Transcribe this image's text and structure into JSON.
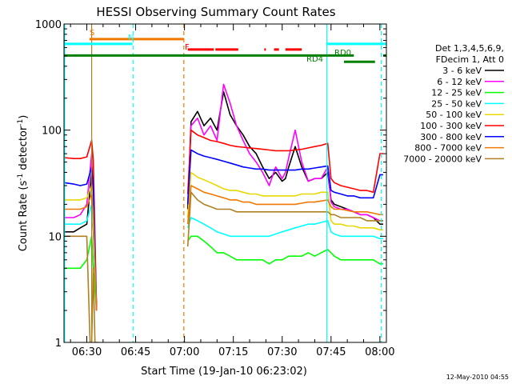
{
  "chart_data": {
    "type": "line",
    "title": "HESSI Observing Summary Count Rates",
    "xlabel": "Start Time (19-Jan-10 06:23:02)",
    "ylabel_main": "Count Rate (s",
    "ylabel_sup1": "-1",
    "ylabel_mid": " detector",
    "ylabel_sup2": "-1",
    "ylabel_end": ")",
    "yscale": "log",
    "ylim": [
      1,
      1000
    ],
    "xlim_min": [
      383,
      482
    ],
    "x_tick_labels": [
      "06:30",
      "06:45",
      "07:00",
      "07:15",
      "07:30",
      "07:45",
      "08:00"
    ],
    "x_tick_values": [
      390,
      405,
      420,
      435,
      450,
      465,
      480
    ],
    "y_tick_labels": [
      "1",
      "10",
      "100",
      "1000"
    ],
    "y_tick_values": [
      1,
      10,
      100,
      1000
    ],
    "footer": "12-May-2010 04:55",
    "legend": {
      "header1": "Det 1,3,4,5,6,9,",
      "header2": "FDecim 1, Att 0",
      "entries": [
        {
          "label": "3 - 6 keV",
          "color": "#000000"
        },
        {
          "label": "6 - 12 keV",
          "color": "#ff00ff"
        },
        {
          "label": "12 - 25 keV",
          "color": "#00ff00"
        },
        {
          "label": "25 - 50 keV",
          "color": "#00ffff"
        },
        {
          "label": "50 - 100 keV",
          "color": "#e8d800"
        },
        {
          "label": "100 - 300 keV",
          "color": "#ff0000"
        },
        {
          "label": "300 - 800 keV",
          "color": "#0000ff"
        },
        {
          "label": "800 - 7000 keV",
          "color": "#f07800"
        },
        {
          "label": "7000 - 20000 keV",
          "color": "#b08020"
        }
      ]
    },
    "annotations": {
      "saa_label": "S",
      "night_label": "N",
      "flare_label": "F",
      "rd0_label": "RD0",
      "rd4_label": "RD4"
    },
    "series": [
      {
        "name": "3 - 6 keV",
        "color": "#000000",
        "x": [
          383,
          386,
          388,
          390,
          391.5,
          392,
          393,
          396,
          405,
          417,
          420,
          421,
          422,
          424,
          426,
          428,
          430,
          432,
          434,
          436,
          438,
          440,
          442,
          444,
          446,
          448,
          450,
          451,
          452,
          454,
          456,
          458,
          460,
          462,
          464,
          465,
          466,
          468,
          470,
          472,
          474,
          476,
          478,
          480,
          481
        ],
        "y": [
          11,
          11,
          12,
          13,
          40,
          12,
          2,
          null,
          null,
          null,
          null,
          18,
          120,
          150,
          110,
          130,
          100,
          230,
          140,
          110,
          90,
          70,
          60,
          45,
          35,
          40,
          33,
          35,
          45,
          70,
          45,
          33,
          35,
          35,
          40,
          22,
          20,
          19,
          18,
          17,
          16,
          16,
          15,
          13,
          13
        ]
      },
      {
        "name": "6 - 12 keV",
        "color": "#ff00ff",
        "x": [
          383,
          386,
          388,
          390,
          391.5,
          392,
          393,
          396,
          420,
          421,
          422,
          424,
          426,
          428,
          430,
          432,
          434,
          436,
          438,
          440,
          442,
          444,
          446,
          448,
          450,
          451,
          452,
          454,
          456,
          458,
          460,
          462,
          464,
          465,
          466,
          468,
          470,
          472,
          474,
          476,
          478,
          480,
          481
        ],
        "y": [
          15,
          15,
          16,
          20,
          60,
          14,
          2,
          null,
          null,
          20,
          110,
          130,
          90,
          110,
          80,
          270,
          180,
          110,
          80,
          60,
          50,
          40,
          30,
          45,
          35,
          40,
          55,
          100,
          50,
          33,
          35,
          35,
          45,
          21,
          19,
          18,
          18,
          17,
          16,
          16,
          15,
          14,
          14
        ]
      },
      {
        "name": "12 - 25 keV",
        "color": "#00ff00",
        "x": [
          383,
          386,
          388,
          390,
          391.5,
          392,
          393,
          396,
          420,
          421,
          422,
          424,
          426,
          428,
          430,
          432,
          434,
          436,
          438,
          440,
          442,
          444,
          446,
          448,
          450,
          452,
          454,
          456,
          458,
          460,
          462,
          464,
          465,
          466,
          468,
          470,
          472,
          474,
          476,
          478,
          480,
          481
        ],
        "y": [
          5,
          5,
          5,
          6,
          10,
          5,
          2,
          null,
          null,
          9,
          10,
          10,
          9,
          8,
          7,
          7,
          6.5,
          6,
          6,
          6,
          6,
          6,
          5.5,
          6,
          6,
          6.5,
          6.5,
          6.5,
          7,
          6.5,
          7,
          7.5,
          7,
          6.5,
          6,
          6,
          6,
          6,
          6,
          6,
          5.5,
          5.5
        ]
      },
      {
        "name": "25 - 50 keV",
        "color": "#00ffff",
        "x": [
          383,
          386,
          388,
          390,
          391.5,
          392,
          393,
          396,
          420,
          421,
          422,
          424,
          426,
          428,
          430,
          432,
          434,
          436,
          438,
          440,
          442,
          444,
          446,
          448,
          450,
          452,
          454,
          456,
          458,
          460,
          462,
          464,
          465,
          466,
          468,
          470,
          472,
          474,
          476,
          478,
          480,
          481
        ],
        "y": [
          13,
          13,
          13,
          14,
          20,
          13,
          2,
          null,
          null,
          12,
          15,
          14,
          13,
          12,
          11,
          10.5,
          10,
          10,
          10,
          10,
          10,
          10,
          10,
          10.5,
          11,
          11.5,
          12,
          12.5,
          13,
          13,
          13.5,
          14,
          11,
          10.5,
          10,
          10,
          10,
          10,
          10,
          10,
          9.5,
          9.5
        ]
      },
      {
        "name": "50 - 100 keV",
        "color": "#e8d800",
        "x": [
          383,
          386,
          388,
          390,
          391.5,
          392,
          393,
          396,
          420,
          421,
          422,
          424,
          426,
          428,
          430,
          432,
          434,
          436,
          438,
          440,
          442,
          444,
          446,
          448,
          450,
          452,
          454,
          456,
          458,
          460,
          462,
          464,
          465,
          466,
          468,
          470,
          472,
          474,
          476,
          478,
          480,
          481
        ],
        "y": [
          22,
          22,
          22,
          23,
          30,
          20,
          2,
          null,
          null,
          15,
          40,
          36,
          34,
          32,
          30,
          28,
          27,
          27,
          26,
          25,
          25,
          24,
          24,
          24,
          24,
          24,
          24,
          25,
          25,
          25,
          26,
          26,
          14,
          13,
          13,
          12.5,
          12.5,
          12,
          12,
          12,
          11.5,
          11.5
        ]
      },
      {
        "name": "100 - 300 keV",
        "color": "#ff0000",
        "x": [
          383,
          386,
          388,
          390,
          391.5,
          392,
          393,
          396,
          420,
          421,
          422,
          424,
          426,
          428,
          430,
          432,
          434,
          436,
          438,
          440,
          442,
          444,
          446,
          448,
          450,
          452,
          454,
          456,
          458,
          460,
          462,
          464,
          465,
          466,
          468,
          470,
          472,
          474,
          476,
          478,
          480,
          481
        ],
        "y": [
          55,
          54,
          54,
          56,
          80,
          52,
          2,
          null,
          null,
          25,
          100,
          90,
          85,
          80,
          78,
          75,
          72,
          70,
          69,
          68,
          67,
          66,
          65,
          64,
          64,
          64,
          65,
          66,
          68,
          70,
          72,
          75,
          35,
          32,
          30,
          29,
          28,
          27,
          27,
          26,
          60,
          60
        ]
      },
      {
        "name": "300 - 800 keV",
        "color": "#0000ff",
        "x": [
          383,
          386,
          388,
          390,
          391.5,
          392,
          393,
          396,
          420,
          421,
          422,
          424,
          426,
          428,
          430,
          432,
          434,
          436,
          438,
          440,
          442,
          444,
          446,
          448,
          450,
          452,
          454,
          456,
          458,
          460,
          462,
          464,
          465,
          466,
          468,
          470,
          472,
          474,
          476,
          478,
          480,
          481
        ],
        "y": [
          32,
          31,
          30,
          31,
          45,
          30,
          2,
          null,
          null,
          20,
          65,
          60,
          57,
          55,
          53,
          51,
          49,
          47,
          45,
          44,
          43,
          43,
          42,
          42,
          42,
          42,
          42,
          43,
          43,
          44,
          45,
          46,
          27,
          26,
          25,
          24,
          24,
          23,
          23,
          23,
          38,
          38
        ]
      },
      {
        "name": "800 - 7000 keV",
        "color": "#f07800",
        "x": [
          383,
          386,
          388,
          390,
          391.5,
          392,
          393,
          396,
          420,
          421,
          422,
          424,
          426,
          428,
          430,
          432,
          434,
          436,
          438,
          440,
          442,
          444,
          446,
          448,
          450,
          452,
          454,
          456,
          458,
          460,
          462,
          464,
          465,
          466,
          468,
          470,
          472,
          474,
          476,
          478,
          480,
          481
        ],
        "y": [
          18,
          18,
          18,
          19,
          25,
          17,
          2,
          null,
          null,
          13,
          30,
          28,
          26,
          25,
          24,
          23,
          22,
          22,
          21,
          21,
          20,
          20,
          20,
          20,
          20,
          20,
          20,
          20.5,
          21,
          21,
          21.5,
          22,
          19,
          18,
          18,
          17.5,
          17,
          17,
          17,
          16.5,
          16,
          16
        ]
      },
      {
        "name": "7000 - 20000 keV",
        "color": "#b08020",
        "x": [
          383,
          386,
          388,
          390,
          391,
          391.5,
          392,
          392.5,
          393,
          393.5,
          396,
          420,
          421,
          422,
          424,
          426,
          428,
          430,
          432,
          434,
          436,
          438,
          440,
          442,
          444,
          446,
          448,
          450,
          452,
          454,
          456,
          458,
          460,
          462,
          464,
          465,
          466,
          468,
          470,
          472,
          474,
          476,
          478,
          480,
          481
        ],
        "y": [
          10,
          10,
          10,
          10,
          1,
          1,
          5,
          1,
          1,
          1,
          null,
          null,
          8,
          26,
          22,
          20,
          19,
          18,
          18,
          18,
          17,
          17,
          17,
          17,
          17,
          17,
          17,
          17,
          17,
          17,
          17,
          17,
          17,
          17,
          17,
          16,
          16,
          15,
          15,
          15,
          15,
          14,
          14,
          14,
          14
        ]
      }
    ],
    "vlines": [
      {
        "x": 383.2,
        "color": "#00ffff",
        "style": "solid"
      },
      {
        "x": 391.5,
        "color": "#b08020",
        "style": "solid"
      },
      {
        "x": 404.2,
        "color": "#00ffff",
        "style": "dashed"
      },
      {
        "x": 419.8,
        "color": "#f07800",
        "style": "dashed"
      },
      {
        "x": 463.7,
        "color": "#00ffff",
        "style": "solid"
      },
      {
        "x": 480.4,
        "color": "#00ffff",
        "style": "dashed"
      }
    ],
    "bars": [
      {
        "name": "saa",
        "color": "#f07800",
        "x0": 390.8,
        "x1": 419.8,
        "y": 720
      },
      {
        "name": "night",
        "color": "#00ffff",
        "x0": 383.0,
        "x1": 404.0,
        "y": 650
      },
      {
        "name": "night",
        "color": "#00ffff",
        "x0": 463.7,
        "x1": 482.0,
        "y": 650
      },
      {
        "name": "flare",
        "color": "#ff0000",
        "x0": 421.0,
        "x1": 429.0,
        "y": 575
      },
      {
        "name": "flare",
        "color": "#ff0000",
        "x0": 429.5,
        "x1": 436.5,
        "y": 575
      },
      {
        "name": "flare",
        "color": "#ff0000",
        "x0": 444.5,
        "x1": 445.0,
        "y": 575
      },
      {
        "name": "flare",
        "color": "#ff0000",
        "x0": 447.5,
        "x1": 449.0,
        "y": 575
      },
      {
        "name": "flare",
        "color": "#ff0000",
        "x0": 451.0,
        "x1": 456.0,
        "y": 575
      },
      {
        "name": "rd0",
        "color": "#008000",
        "x0": 383.0,
        "x1": 472.0,
        "y": 505
      },
      {
        "name": "rd0",
        "color": "#008000",
        "x0": 481.0,
        "x1": 482.0,
        "y": 505
      },
      {
        "name": "rd4",
        "color": "#008000",
        "x0": 469.0,
        "x1": 478.5,
        "y": 440
      }
    ]
  }
}
